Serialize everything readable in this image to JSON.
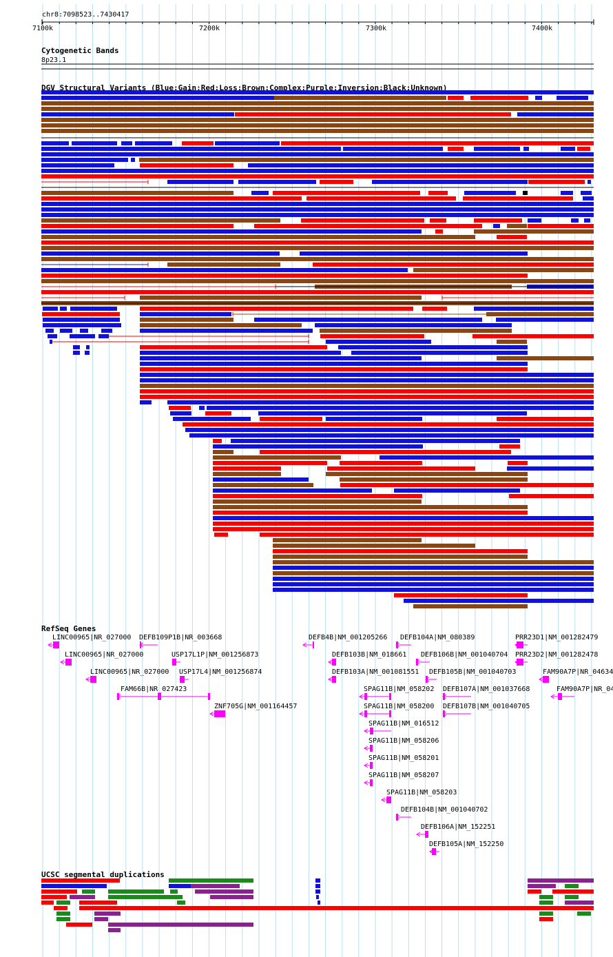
{
  "locus": "chr8:7098523..7430417",
  "ruler": {
    "ticks": [
      "7100k",
      "7200k",
      "7300k",
      "7400k"
    ]
  },
  "cytobands": {
    "title": "Cytogenetic Bands",
    "band": "8p23.1"
  },
  "dgv": {
    "title": "DGV Structural Variants (Blue:Gain;Red:Loss;Brown:Complex;Purple:Inversion;Black:Unknown)",
    "colors": {
      "gain": "#1010e0",
      "loss": "#ff0000",
      "complex": "#8b4513",
      "inversion": "#8b008b",
      "unknown": "#000000"
    }
  },
  "refseq": {
    "title": "RefSeq Genes",
    "color": "#ff00ff",
    "genes": [
      "LINC00965|NR_027000",
      "DEFB109P1B|NR_003668",
      "DEFB4B|NM_001205266",
      "DEFB104A|NM_080389",
      "PRR23D1|NM_001282479",
      "LINC00965|NR_027000",
      "USP17L1P|NM_001256873",
      "DEFB103B|NM_018661",
      "DEFB106B|NM_001040704",
      "PRR23D2|NM_001282478",
      "LINC00965|NR_027000",
      "USP17L4|NM_001256874",
      "DEFB103A|NM_001081551",
      "DEFB105B|NM_001040703",
      "FAM90A7P|NR_04634",
      "FAM66B|NR_027423",
      "SPAG11B|NM_058202",
      "DEFB107A|NM_001037668",
      "FAM90A7P|NR_04",
      "ZNF705G|NM_001164457",
      "SPAG11B|NM_058200",
      "DEFB107B|NM_001040705",
      "SPAG11B|NM_016512",
      "SPAG11B|NM_058206",
      "SPAG11B|NM_058201",
      "SPAG11B|NM_058207",
      "SPAG11B|NM_058203",
      "DEFB104B|NM_001040702",
      "DEFB106A|NM_152251",
      "DEFB105A|NM_152250"
    ]
  },
  "segdup": {
    "title": "UCSC segmental duplications",
    "colors": {
      "red": "#ff0000",
      "green": "#1a8a1a",
      "blue": "#1010e0",
      "purple": "#8b2090"
    }
  }
}
